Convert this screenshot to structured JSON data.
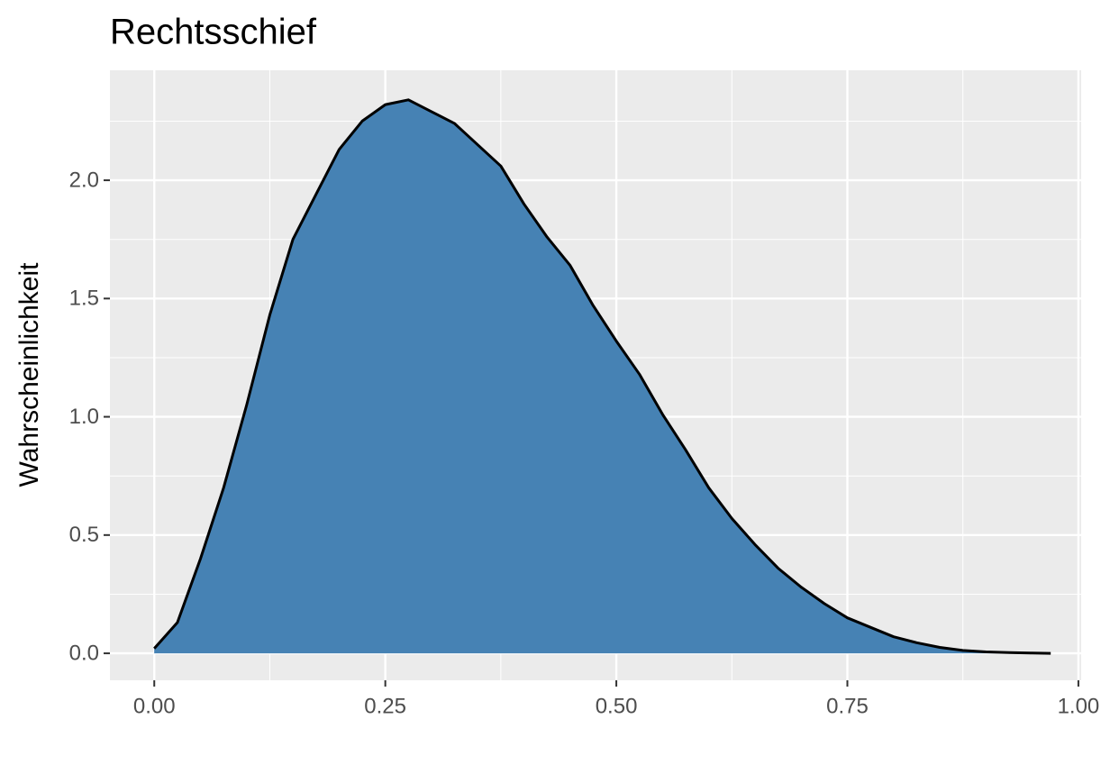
{
  "chart_data": {
    "type": "area",
    "title": "Rechtsschief",
    "ylabel": "Wahrscheinlichkeit",
    "x": [
      0,
      0.025,
      0.05,
      0.075,
      0.1,
      0.125,
      0.15,
      0.175,
      0.2,
      0.225,
      0.25,
      0.275,
      0.3,
      0.325,
      0.35,
      0.375,
      0.4,
      0.425,
      0.45,
      0.475,
      0.5,
      0.525,
      0.55,
      0.575,
      0.6,
      0.625,
      0.65,
      0.675,
      0.7,
      0.725,
      0.75,
      0.775,
      0.8,
      0.825,
      0.85,
      0.875,
      0.9,
      0.925,
      0.95,
      0.97
    ],
    "values": [
      0.02,
      0.13,
      0.4,
      0.7,
      1.05,
      1.43,
      1.75,
      1.94,
      2.13,
      2.25,
      2.32,
      2.34,
      2.29,
      2.24,
      2.15,
      2.06,
      1.9,
      1.76,
      1.64,
      1.47,
      1.32,
      1.18,
      1.01,
      0.86,
      0.7,
      0.57,
      0.46,
      0.36,
      0.28,
      0.21,
      0.15,
      0.11,
      0.07,
      0.045,
      0.025,
      0.012,
      0.006,
      0.003,
      0.001,
      0
    ],
    "color": "#4682b4",
    "line_color": "#000000",
    "panel_color": "#ebebeb",
    "xlim": [
      -0.048,
      1.003
    ],
    "ylim": [
      -0.114,
      2.465
    ],
    "xticks": [
      {
        "value": 0,
        "label": "0.00"
      },
      {
        "value": 0.25,
        "label": "0.25"
      },
      {
        "value": 0.5,
        "label": "0.50"
      },
      {
        "value": 0.75,
        "label": "0.75"
      },
      {
        "value": 1,
        "label": "1.00"
      }
    ],
    "yticks": [
      {
        "value": 0,
        "label": "0.0"
      },
      0.5,
      {
        "value": 1,
        "label": "1.0"
      },
      1.5,
      {
        "value": 2,
        "label": "2.0"
      }
    ],
    "grid": true
  }
}
